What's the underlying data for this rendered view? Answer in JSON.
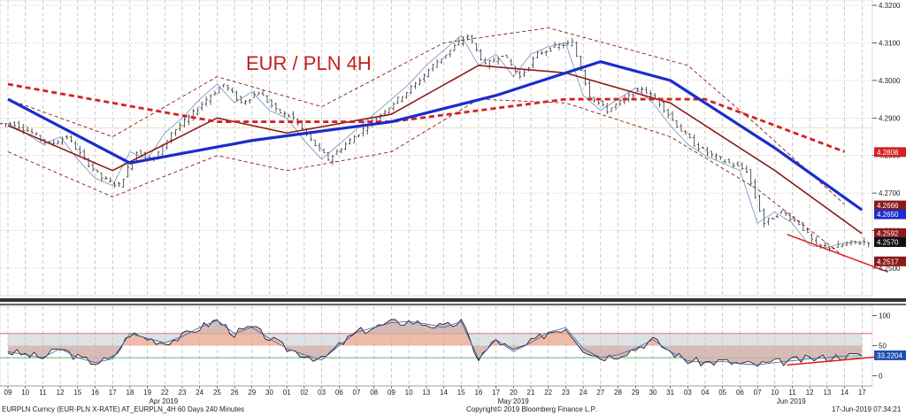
{
  "chart_data": [
    {
      "type": "candlestick",
      "title": "EUR / PLN 4H",
      "yaxis_side": "right",
      "ylim": [
        4.246,
        4.32
      ],
      "yticks": [
        4.25,
        4.26,
        4.27,
        4.28,
        4.29,
        4.3,
        4.31,
        4.32
      ],
      "ytick_labels": [
        "4.2500",
        "4.2600",
        "4.2700",
        "4.2800",
        "4.2900",
        "4.3000",
        "4.3100",
        "4.3200"
      ],
      "grid": true,
      "reference_line": 4.2874,
      "close_series": [
        {
          "d": "2019-04-09",
          "v": 4.2885
        },
        {
          "d": "2019-04-10",
          "v": 4.286
        },
        {
          "d": "2019-04-11",
          "v": 4.283
        },
        {
          "d": "2019-04-12",
          "v": 4.285
        },
        {
          "d": "2019-04-15",
          "v": 4.279
        },
        {
          "d": "2019-04-16",
          "v": 4.274
        },
        {
          "d": "2019-04-17",
          "v": 4.272
        },
        {
          "d": "2019-04-18",
          "v": 4.281
        },
        {
          "d": "2019-04-19",
          "v": 4.279
        },
        {
          "d": "2019-04-22",
          "v": 4.286
        },
        {
          "d": "2019-04-23",
          "v": 4.29
        },
        {
          "d": "2019-04-24",
          "v": 4.295
        },
        {
          "d": "2019-04-25",
          "v": 4.299
        },
        {
          "d": "2019-04-26",
          "v": 4.294
        },
        {
          "d": "2019-04-29",
          "v": 4.297
        },
        {
          "d": "2019-04-30",
          "v": 4.292
        },
        {
          "d": "2019-05-01",
          "v": 4.29
        },
        {
          "d": "2019-05-02",
          "v": 4.284
        },
        {
          "d": "2019-05-03",
          "v": 4.279
        },
        {
          "d": "2019-05-06",
          "v": 4.283
        },
        {
          "d": "2019-05-07",
          "v": 4.287
        },
        {
          "d": "2019-05-08",
          "v": 4.291
        },
        {
          "d": "2019-05-09",
          "v": 4.295
        },
        {
          "d": "2019-05-10",
          "v": 4.299
        },
        {
          "d": "2019-05-13",
          "v": 4.304
        },
        {
          "d": "2019-05-14",
          "v": 4.308
        },
        {
          "d": "2019-05-15",
          "v": 4.312
        },
        {
          "d": "2019-05-16",
          "v": 4.304
        },
        {
          "d": "2019-05-17",
          "v": 4.307
        },
        {
          "d": "2019-05-20",
          "v": 4.301
        },
        {
          "d": "2019-05-21",
          "v": 4.307
        },
        {
          "d": "2019-05-22",
          "v": 4.309
        },
        {
          "d": "2019-05-23",
          "v": 4.31
        },
        {
          "d": "2019-05-24",
          "v": 4.296
        },
        {
          "d": "2019-05-27",
          "v": 4.292
        },
        {
          "d": "2019-05-28",
          "v": 4.295
        },
        {
          "d": "2019-05-29",
          "v": 4.298
        },
        {
          "d": "2019-05-30",
          "v": 4.294
        },
        {
          "d": "2019-05-31",
          "v": 4.288
        },
        {
          "d": "2019-06-03",
          "v": 4.283
        },
        {
          "d": "2019-06-04",
          "v": 4.28
        },
        {
          "d": "2019-06-05",
          "v": 4.278
        },
        {
          "d": "2019-06-06",
          "v": 4.276
        },
        {
          "d": "2019-06-07",
          "v": 4.262
        },
        {
          "d": "2019-06-10",
          "v": 4.265
        },
        {
          "d": "2019-06-11",
          "v": 4.262
        },
        {
          "d": "2019-06-12",
          "v": 4.256
        },
        {
          "d": "2019-06-13",
          "v": 4.2555
        },
        {
          "d": "2019-06-14",
          "v": 4.2568
        },
        {
          "d": "2019-06-17",
          "v": 4.257
        }
      ],
      "overlays": {
        "ma_slow": {
          "color": "#d62020",
          "style": "dashed",
          "points": [
            [
              0,
              4.299
            ],
            [
              12,
              4.289
            ],
            [
              22,
              4.289
            ],
            [
              32,
              4.295
            ],
            [
              40,
              4.295
            ],
            [
              48,
              4.281
            ]
          ]
        },
        "ma_mid": {
          "color": "#1a2ccc",
          "style": "solid",
          "points": [
            [
              0,
              4.295
            ],
            [
              7,
              4.278
            ],
            [
              14,
              4.284
            ],
            [
              22,
              4.289
            ],
            [
              28,
              4.296
            ],
            [
              34,
              4.305
            ],
            [
              38,
              4.3
            ],
            [
              44,
              4.282
            ],
            [
              49,
              4.2655
            ]
          ]
        },
        "ma_fast": {
          "color": "#8b1a1a",
          "style": "solid",
          "points": [
            [
              0,
              4.288
            ],
            [
              6,
              4.276
            ],
            [
              12,
              4.29
            ],
            [
              16,
              4.286
            ],
            [
              22,
              4.291
            ],
            [
              27,
              4.304
            ],
            [
              32,
              4.302
            ],
            [
              38,
              4.294
            ],
            [
              44,
              4.276
            ],
            [
              49,
              4.2592
            ]
          ]
        },
        "band_upper": {
          "color": "#8b1a1a",
          "style": "dashed",
          "points": [
            [
              0,
              4.295
            ],
            [
              6,
              4.285
            ],
            [
              12,
              4.301
            ],
            [
              18,
              4.293
            ],
            [
              25,
              4.31
            ],
            [
              31,
              4.314
            ],
            [
              35,
              4.309
            ],
            [
              39,
              4.304
            ],
            [
              43,
              4.288
            ],
            [
              48,
              4.267
            ]
          ]
        },
        "band_lower": {
          "color": "#8b1a1a",
          "style": "dashed",
          "points": [
            [
              0,
              4.281
            ],
            [
              6,
              4.269
            ],
            [
              12,
              4.28
            ],
            [
              16,
              4.276
            ],
            [
              22,
              4.281
            ],
            [
              27,
              4.295
            ],
            [
              32,
              4.294
            ],
            [
              38,
              4.285
            ],
            [
              43,
              4.271
            ],
            [
              48,
              4.253
            ]
          ]
        },
        "trendline": {
          "color": "#e01b1b",
          "style": "solid",
          "points": [
            [
              44.7,
              4.259
            ],
            [
              50.5,
              4.249
            ]
          ]
        }
      },
      "price_tags": [
        {
          "label": "4.2808",
          "value": 4.2808,
          "color": "#d62020"
        },
        {
          "label": "4.2666",
          "value": 4.2666,
          "color": "#8b1a1a"
        },
        {
          "label": "4.2650",
          "value": 4.265,
          "color": "#1a2ccc"
        },
        {
          "label": "4.2592",
          "value": 4.2592,
          "color": "#8b1a1a"
        },
        {
          "label": "4.2570",
          "value": 4.257,
          "color": "#111111"
        },
        {
          "label": "4.2517",
          "value": 4.2517,
          "color": "#8b1a1a"
        }
      ]
    },
    {
      "type": "line",
      "ylim": [
        -5,
        105
      ],
      "yticks": [
        0,
        50,
        100
      ],
      "ytick_labels": [
        "0",
        "50",
        "100"
      ],
      "levels": [
        70,
        30
      ],
      "series": [
        {
          "color": "#111111",
          "values": [
            40,
            35,
            30,
            45,
            30,
            22,
            28,
            70,
            62,
            55,
            65,
            80,
            92,
            70,
            80,
            62,
            45,
            35,
            26,
            50,
            72,
            80,
            88,
            90,
            86,
            80,
            90,
            28,
            60,
            40,
            55,
            72,
            80,
            45,
            30,
            35,
            45,
            60,
            40,
            25,
            22,
            24,
            20,
            18,
            22,
            25,
            28,
            30,
            33,
            33.22
          ]
        }
      ],
      "value_tag": {
        "label": "33.2204",
        "value": 33.2204,
        "color": "#1e4fb0"
      },
      "trendline": {
        "color": "#e01b1b",
        "points": [
          [
            44.7,
            18
          ],
          [
            50.5,
            33
          ]
        ]
      }
    }
  ],
  "xaxis": {
    "ticks": [
      "09",
      "10",
      "11",
      "12",
      "15",
      "16",
      "17",
      "18",
      "19",
      "22",
      "23",
      "24",
      "25",
      "26",
      "29",
      "30",
      "01",
      "02",
      "03",
      "06",
      "07",
      "08",
      "09",
      "10",
      "13",
      "14",
      "15",
      "16",
      "17",
      "20",
      "21",
      "22",
      "23",
      "24",
      "27",
      "28",
      "29",
      "30",
      "31",
      "03",
      "04",
      "05",
      "06",
      "07",
      "10",
      "11",
      "12",
      "13",
      "14",
      "17"
    ],
    "months": [
      {
        "label": "Apr 2019",
        "index": 8
      },
      {
        "label": "May 2019",
        "index": 28
      },
      {
        "label": "Jun 2019",
        "index": 44
      }
    ]
  },
  "footer": {
    "left": "EURPLN Curncy (EUR-PLN X-RATE) AT_EURPLN_4H 60 Days 240 Minutes",
    "center": "Copyright© 2019 Bloomberg Finance L.P.",
    "right": "17-Jun-2019 07:34:21"
  }
}
